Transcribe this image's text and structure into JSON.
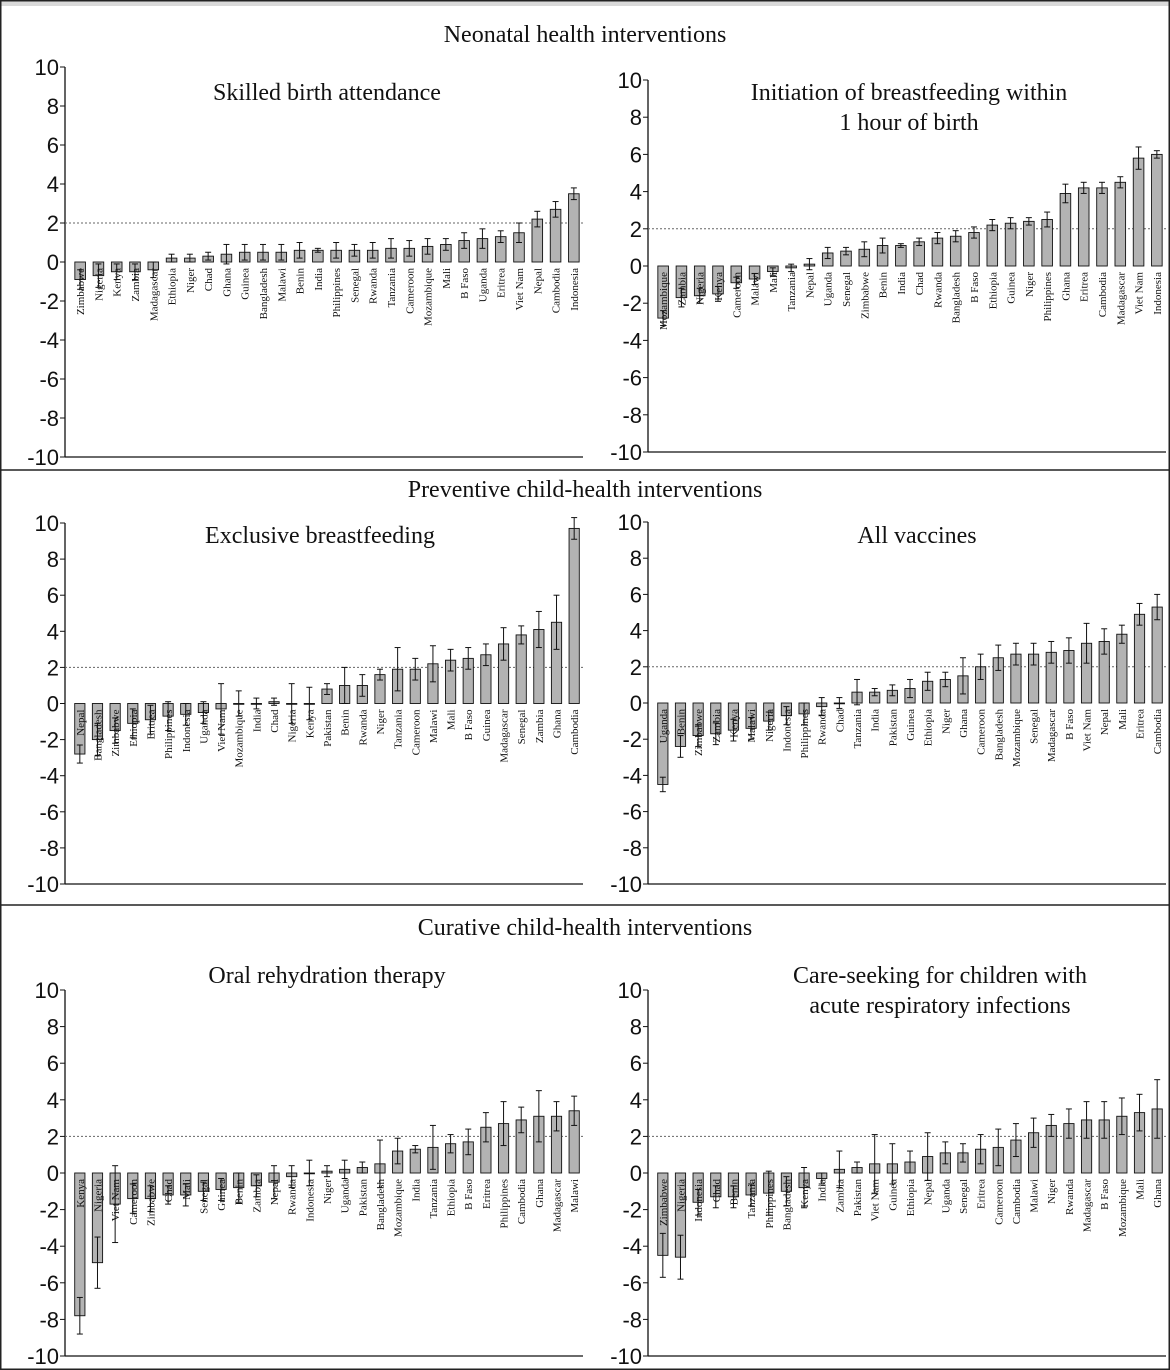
{
  "sections": [
    {
      "title": "Neonatal health interventions"
    },
    {
      "title": "Preventive child-health interventions"
    },
    {
      "title": "Curative child-health interventions"
    }
  ],
  "reference_line": 2,
  "chart_data": [
    {
      "type": "bar",
      "title_lines": [
        "Skilled birth attendance"
      ],
      "ylim": [
        -10,
        10
      ],
      "yticks": [
        10,
        8,
        6,
        4,
        2,
        0,
        -2,
        -4,
        -6,
        -8,
        -10
      ],
      "categories": [
        "Zimbabwe",
        "Nigeria",
        "Kenya",
        "Zambia",
        "Madagascar",
        "Ethiopia",
        "Niger",
        "Chad",
        "Ghana",
        "Guinea",
        "Bangladesh",
        "Malawi",
        "Benin",
        "India",
        "Philippines",
        "Senegal",
        "Rwanda",
        "Tanzania",
        "Cameroon",
        "Mozambique",
        "Mali",
        "B Faso",
        "Uganda",
        "Eritrea",
        "Viet Nam",
        "Nepal",
        "Cambodia",
        "Indonesia"
      ],
      "values": [
        -0.9,
        -0.7,
        -0.5,
        -0.5,
        -0.4,
        0.2,
        0.2,
        0.3,
        0.4,
        0.5,
        0.5,
        0.5,
        0.6,
        0.6,
        0.6,
        0.6,
        0.6,
        0.7,
        0.7,
        0.8,
        0.9,
        1.1,
        1.2,
        1.3,
        1.5,
        2.2,
        2.7,
        3.5
      ],
      "errors": [
        0.5,
        0.6,
        0.4,
        0.4,
        0.4,
        0.2,
        0.2,
        0.2,
        0.5,
        0.4,
        0.4,
        0.4,
        0.4,
        0.1,
        0.4,
        0.3,
        0.4,
        0.5,
        0.4,
        0.4,
        0.3,
        0.4,
        0.5,
        0.3,
        0.5,
        0.4,
        0.4,
        0.3
      ]
    },
    {
      "type": "bar",
      "title_lines": [
        "Initiation of breastfeeding within",
        "1 hour of birth"
      ],
      "ylim": [
        -10,
        10
      ],
      "yticks": [
        10,
        8,
        6,
        4,
        2,
        0,
        -2,
        -4,
        -6,
        -8,
        -10
      ],
      "categories": [
        "Mozambique",
        "Zambia",
        "Nigeria",
        "Kenya",
        "Cameroon",
        "Malawi",
        "Mali",
        "Tanzania",
        "Nepal",
        "Uganda",
        "Senegal",
        "Zimbabwe",
        "Benin",
        "India",
        "Chad",
        "Rwanda",
        "Bangladesh",
        "B Faso",
        "Ethiopia",
        "Guinea",
        "Niger",
        "Philippines",
        "Ghana",
        "Eritrea",
        "Cambodia",
        "Madagascar",
        "Viet Nam",
        "Indonesia"
      ],
      "values": [
        -2.8,
        -1.7,
        -1.6,
        -1.5,
        -0.9,
        -0.7,
        -0.3,
        -0.1,
        0.1,
        0.7,
        0.8,
        0.9,
        1.1,
        1.1,
        1.3,
        1.5,
        1.6,
        1.8,
        2.2,
        2.3,
        2.4,
        2.5,
        3.9,
        4.2,
        4.2,
        4.5,
        5.8,
        6.0
      ],
      "errors": [
        0.4,
        0.5,
        0.4,
        0.4,
        0.3,
        0.3,
        0.2,
        0.2,
        0.3,
        0.3,
        0.2,
        0.4,
        0.4,
        0.1,
        0.2,
        0.3,
        0.3,
        0.3,
        0.3,
        0.3,
        0.2,
        0.4,
        0.5,
        0.3,
        0.3,
        0.3,
        0.6,
        0.2
      ]
    },
    {
      "type": "bar",
      "title_lines": [
        "Exclusive breastfeeding"
      ],
      "ylim": [
        -10,
        10
      ],
      "yticks": [
        10,
        8,
        6,
        4,
        2,
        0,
        -2,
        -4,
        -6,
        -8,
        -10
      ],
      "categories": [
        "Nepal",
        "Bangladesh",
        "Zimbabwe",
        "Ethiopia",
        "Eritrea",
        "Philippines",
        "Indonesia",
        "Uganda",
        "Viet Nam",
        "Mozambique",
        "India",
        "Chad",
        "Nigeria",
        "Kenya",
        "Pakistan",
        "Benin",
        "Rwanda",
        "Niger",
        "Tanzania",
        "Cameroon",
        "Malawi",
        "Mali",
        "B Faso",
        "Guinea",
        "Madagascar",
        "Senegal",
        "Zambia",
        "Ghana",
        "Cambodia"
      ],
      "values": [
        -2.8,
        -2.0,
        -1.5,
        -1.1,
        -0.9,
        -0.7,
        -0.6,
        -0.5,
        -0.3,
        0.0,
        0.0,
        0.1,
        0.0,
        0.0,
        0.8,
        1.0,
        1.0,
        1.6,
        1.9,
        1.9,
        2.2,
        2.4,
        2.5,
        2.7,
        3.3,
        3.8,
        4.1,
        4.5,
        9.7
      ],
      "errors": [
        0.5,
        0.9,
        0.7,
        0.8,
        0.8,
        0.8,
        0.6,
        0.6,
        1.4,
        0.7,
        0.3,
        0.2,
        1.1,
        0.9,
        0.3,
        1.0,
        0.6,
        0.3,
        1.2,
        0.6,
        1.0,
        0.6,
        0.6,
        0.6,
        0.9,
        0.5,
        1.0,
        1.5,
        0.6
      ]
    },
    {
      "type": "bar",
      "title_lines": [
        "All vaccines"
      ],
      "ylim": [
        -10,
        10
      ],
      "yticks": [
        10,
        8,
        6,
        4,
        2,
        0,
        -2,
        -4,
        -6,
        -8,
        -10
      ],
      "categories": [
        "Uganda",
        "Benin",
        "Zimbabwe",
        "Zambia",
        "Kenya",
        "Malawi",
        "Nigeria",
        "Indonesia",
        "Philippines",
        "Rwanda",
        "Chad",
        "Tanzania",
        "India",
        "Pakistan",
        "Guinea",
        "Ethiopia",
        "Niger",
        "Ghana",
        "Cameroon",
        "Bangladesh",
        "Mozambique",
        "Senegal",
        "Madagascar",
        "B Faso",
        "Viet Nam",
        "Nepal",
        "Mali",
        "Eritrea",
        "Cambodia"
      ],
      "values": [
        -4.5,
        -2.4,
        -1.8,
        -1.7,
        -1.5,
        -1.4,
        -1.0,
        -0.7,
        -0.6,
        -0.2,
        0.0,
        0.6,
        0.6,
        0.7,
        0.8,
        1.2,
        1.3,
        1.5,
        2.0,
        2.5,
        2.7,
        2.7,
        2.8,
        2.9,
        3.3,
        3.4,
        3.8,
        4.9,
        5.3
      ],
      "errors": [
        0.4,
        0.6,
        0.6,
        0.6,
        0.6,
        0.6,
        0.5,
        0.5,
        0.6,
        0.5,
        0.3,
        0.7,
        0.2,
        0.3,
        0.5,
        0.5,
        0.4,
        1.0,
        0.7,
        0.7,
        0.6,
        0.6,
        0.6,
        0.7,
        1.1,
        0.7,
        0.5,
        0.6,
        0.7
      ]
    },
    {
      "type": "bar",
      "title_lines": [
        "Oral rehydration therapy"
      ],
      "ylim": [
        -10,
        10
      ],
      "yticks": [
        10,
        8,
        6,
        4,
        2,
        0,
        -2,
        -4,
        -6,
        -8,
        -10
      ],
      "categories": [
        "Kenya",
        "Nigeria",
        "Viet Nam",
        "Cameroon",
        "Zimbabwe",
        "Chad",
        "Mali",
        "Senegal",
        "Guinea",
        "Benin",
        "Zambia",
        "Nepal",
        "Rwanda",
        "Indonesia",
        "Niger",
        "Uganda",
        "Pakistan",
        "Bangladesh",
        "Mozambique",
        "India",
        "Tanzania",
        "Ethiopia",
        "B Faso",
        "Eritrea",
        "Philippines",
        "Cambodia",
        "Ghana",
        "Madagascar",
        "Malawi"
      ],
      "values": [
        -7.8,
        -4.9,
        -1.7,
        -1.4,
        -1.4,
        -1.2,
        -1.2,
        -1.0,
        -0.9,
        -0.8,
        -0.7,
        -0.5,
        -0.2,
        0.0,
        0.1,
        0.2,
        0.3,
        0.5,
        1.2,
        1.3,
        1.4,
        1.6,
        1.7,
        2.5,
        2.7,
        2.9,
        3.1,
        3.1,
        3.4
      ],
      "errors": [
        1.0,
        1.4,
        2.1,
        0.8,
        0.7,
        0.5,
        0.6,
        0.5,
        0.6,
        0.8,
        0.6,
        0.9,
        0.6,
        0.7,
        0.3,
        0.5,
        0.3,
        1.3,
        0.7,
        0.2,
        1.2,
        0.5,
        0.7,
        0.8,
        1.2,
        0.7,
        1.4,
        0.8,
        0.8
      ]
    },
    {
      "type": "bar",
      "title_lines": [
        "Care-seeking for children with",
        "acute respiratory infections"
      ],
      "ylim": [
        -10,
        10
      ],
      "yticks": [
        10,
        8,
        6,
        4,
        2,
        0,
        -2,
        -4,
        -6,
        -8,
        -10
      ],
      "categories": [
        "Zimbabwe",
        "Nigeria",
        "Indonesia",
        "Chad",
        "Benin",
        "Tanzania",
        "Philippines",
        "Bangladesh",
        "Kenya",
        "India",
        "Zambia",
        "Pakistan",
        "Viet Nam",
        "Guinea",
        "Ethiopia",
        "Nepal",
        "Uganda",
        "Senegal",
        "Eritrea",
        "Cameroon",
        "Cambodia",
        "Malawi",
        "Niger",
        "Rwanda",
        "Madagascar",
        "B Faso",
        "Mozambique",
        "Mali",
        "Ghana"
      ],
      "values": [
        -4.5,
        -4.6,
        -1.6,
        -1.3,
        -1.3,
        -1.2,
        -1.1,
        -1.0,
        -0.8,
        -0.3,
        0.2,
        0.3,
        0.5,
        0.5,
        0.6,
        0.9,
        1.1,
        1.1,
        1.3,
        1.4,
        1.8,
        2.2,
        2.6,
        2.7,
        2.9,
        2.9,
        3.1,
        3.3,
        3.5
      ],
      "errors": [
        1.2,
        1.2,
        0.7,
        0.6,
        0.6,
        0.6,
        1.2,
        0.8,
        1.1,
        0.3,
        1.0,
        0.3,
        1.6,
        1.1,
        0.6,
        1.3,
        0.6,
        0.5,
        0.8,
        1.0,
        0.9,
        0.8,
        0.6,
        0.8,
        1.0,
        1.0,
        1.0,
        1.0,
        1.6
      ]
    }
  ]
}
